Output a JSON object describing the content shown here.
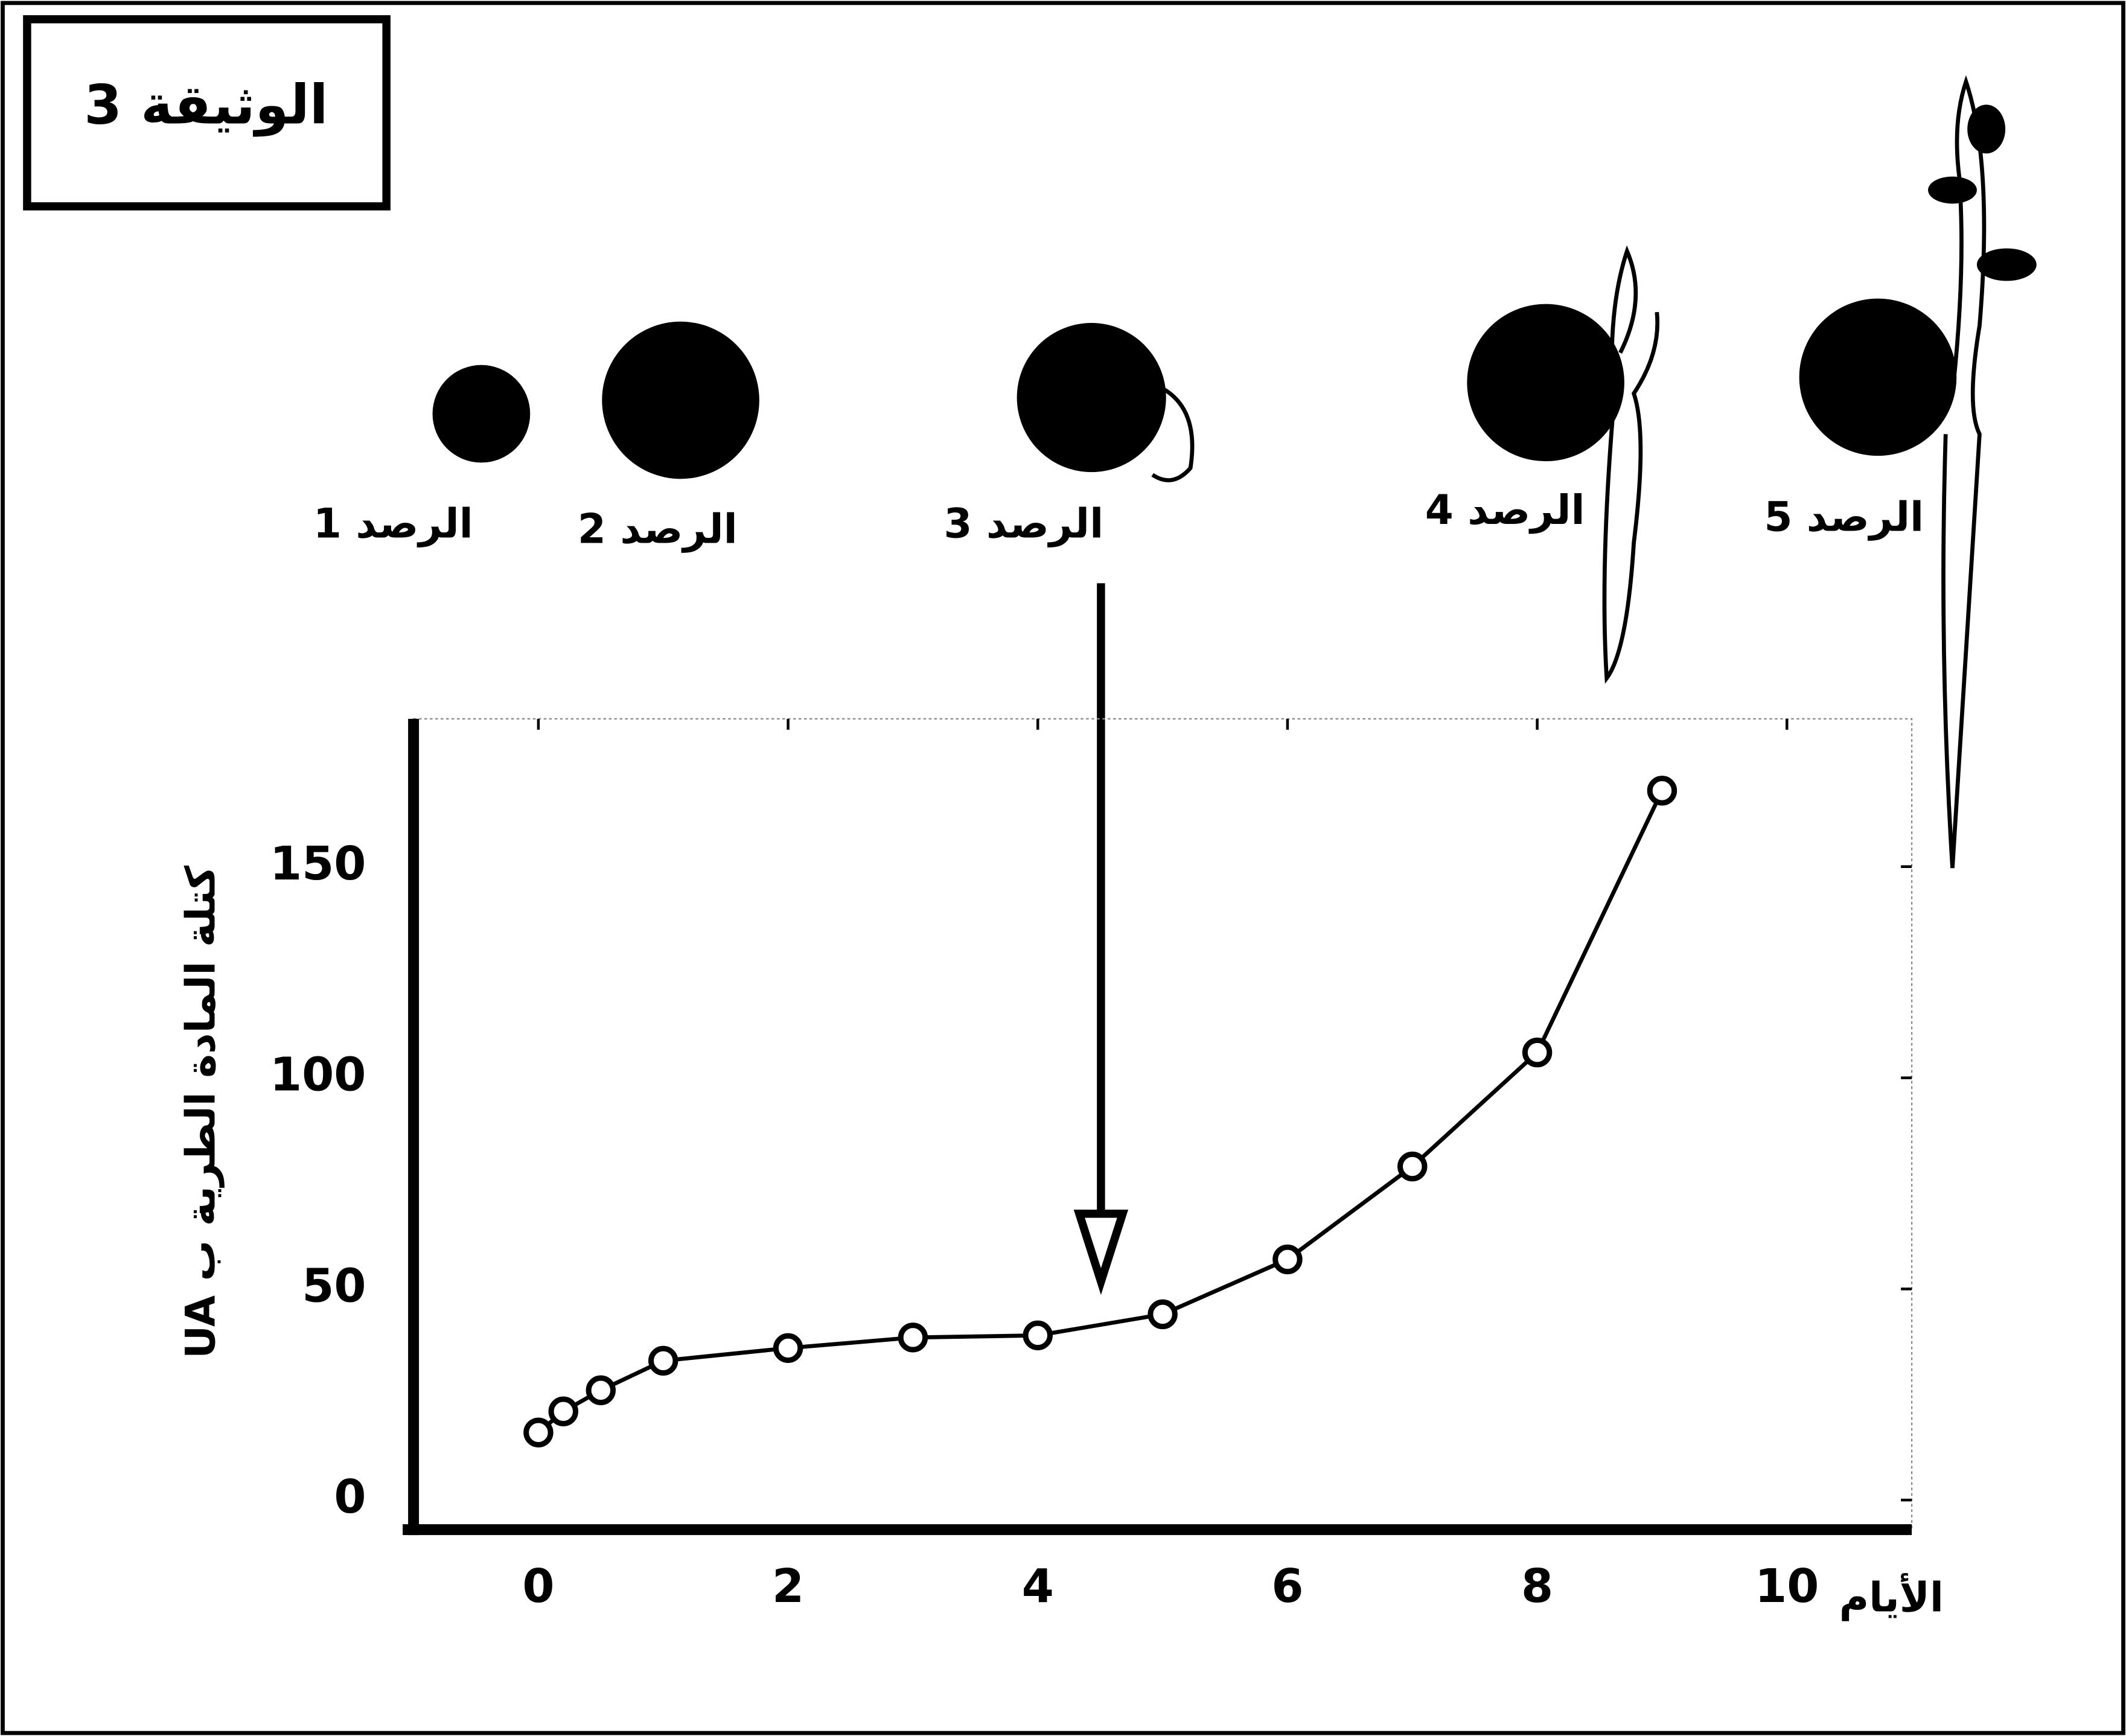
{
  "chart_data": {
    "type": "line",
    "title": "الوثيقة 3",
    "stages": [
      "الرصد 1",
      "الرصد 2",
      "الرصد 3",
      "الرصد 4",
      "الرصد 5"
    ],
    "y_label": "كتلة المادة الطرية ب UA",
    "x_label": "الأيام",
    "x": [
      0,
      0.2,
      0.5,
      1,
      2,
      3,
      4,
      5,
      6,
      7,
      8,
      9
    ],
    "series": [
      {
        "color": "#000000",
        "values": [
          16,
          21,
          26,
          33,
          36,
          38.5,
          39,
          44,
          57,
          79,
          106,
          168
        ]
      }
    ],
    "xlim": [
      -1,
      11
    ],
    "xticks": [
      0,
      2,
      4,
      6,
      8,
      10
    ],
    "ylim": [
      -7,
      185
    ],
    "yticks": [
      0,
      50,
      100,
      150
    ]
  }
}
